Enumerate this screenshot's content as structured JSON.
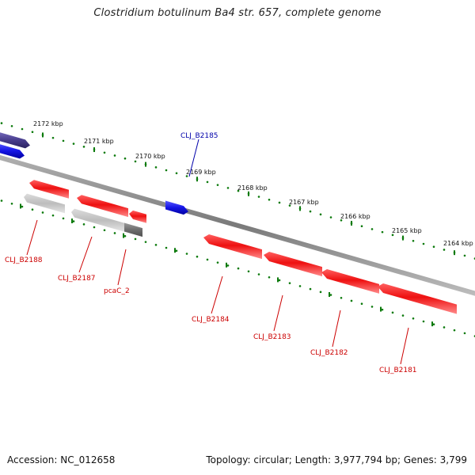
{
  "title": "Clostridium botulinum Ba4 str. 657, complete genome",
  "footer": {
    "accession": "Accession: NC_012658",
    "summary": "Topology: circular; Length: 3,977,794 bp; Genes: 3,799"
  },
  "colors": {
    "forward_strand": "#1515e6",
    "forward_dark": "#4a3f8f",
    "reverse_strand": "#ee1111",
    "pseudo_light": "#bdbdbd",
    "pseudo_dark": "#6e6e6e",
    "backbone": "#8a8a8a",
    "tick": "#0c7a0c",
    "forward_label": "#0000aa",
    "reverse_label": "#cc0000"
  },
  "ruler": {
    "ticks": [
      {
        "label": "2172 kbp"
      },
      {
        "label": "2171 kbp"
      },
      {
        "label": "2170 kbp"
      },
      {
        "label": "2169 kbp"
      },
      {
        "label": "2168 kbp"
      },
      {
        "label": "2167 kbp"
      },
      {
        "label": "2166 kbp"
      },
      {
        "label": "2165 kbp"
      },
      {
        "label": "2164 kbp"
      }
    ]
  },
  "labels": {
    "forward": [
      {
        "text": "CLJ_B2185"
      }
    ],
    "reverse": [
      {
        "text": "CLJ_B2188"
      },
      {
        "text": "CLJ_B2187"
      },
      {
        "text": "pcaC_2"
      },
      {
        "text": "CLJ_B2184"
      },
      {
        "text": "CLJ_B2183"
      },
      {
        "text": "CLJ_B2182"
      },
      {
        "text": "CLJ_B2181"
      }
    ]
  }
}
